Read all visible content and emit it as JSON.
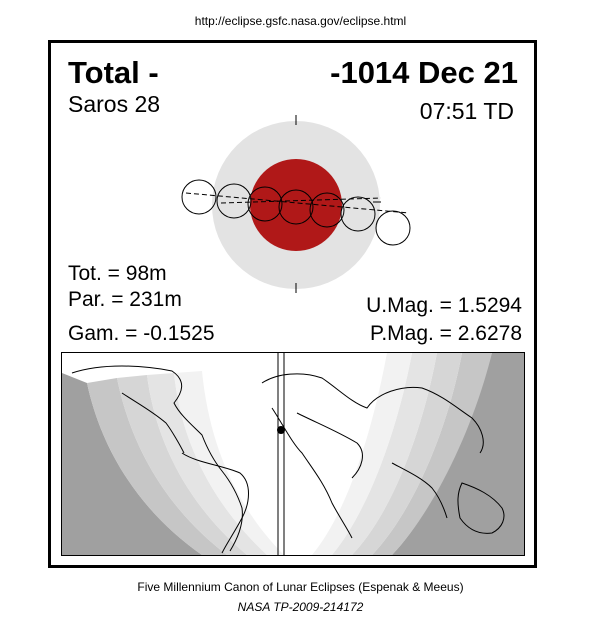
{
  "header": {
    "url": "http://eclipse.gsfc.nasa.gov/eclipse.html"
  },
  "eclipse": {
    "type": "Total  -",
    "date": "-1014 Dec 21",
    "saros": "Saros  28",
    "time": "07:51 TD",
    "totality": "Tot. =  98m",
    "partiality": "Par. = 231m",
    "gamma": "Gam. = -0.1525",
    "umbral_mag": "U.Mag. = 1.5294",
    "penumbral_mag": "P.Mag. = 2.6278"
  },
  "colors": {
    "penumbra": "#e3e3e3",
    "umbra": "#b01818",
    "map_shade_dark": "#a0a0a0",
    "map_shade_light": "#f2f2f2"
  },
  "footer": {
    "caption": "Five Millennium Canon of Lunar Eclipses (Espenak & Meeus)",
    "reference": "NASA TP-2009-214172"
  }
}
